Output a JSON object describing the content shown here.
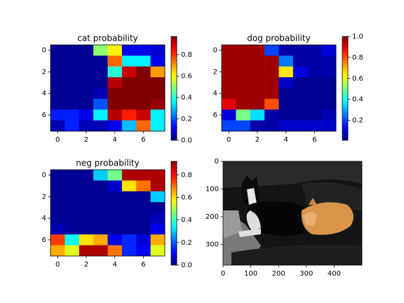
{
  "chart_data": [
    {
      "type": "heatmap",
      "title": "cat probability",
      "xlim": [
        -0.5,
        7.5
      ],
      "ylim": [
        7.5,
        -0.5
      ],
      "xticks": [
        0,
        2,
        4,
        6
      ],
      "yticks": [
        0,
        2,
        4,
        6
      ],
      "colormap": "jet",
      "clim": [
        0,
        0.97
      ],
      "cticks": [
        {
          "value": 0,
          "label": "0.0"
        },
        0.2,
        0.4,
        0.6,
        0.8
      ],
      "z": [
        [
          0.02,
          0.02,
          0.02,
          0.5,
          0.62,
          0.1,
          0.1,
          0.08
        ],
        [
          0.02,
          0.02,
          0.02,
          0.02,
          0.75,
          0.35,
          0.35,
          0.1
        ],
        [
          0.02,
          0.02,
          0.02,
          0.02,
          0.4,
          0.9,
          0.97,
          0.7
        ],
        [
          0.02,
          0.02,
          0.02,
          0.02,
          0.92,
          0.97,
          0.97,
          0.97
        ],
        [
          0.02,
          0.02,
          0.02,
          0.05,
          0.97,
          0.97,
          0.97,
          0.97
        ],
        [
          0.02,
          0.02,
          0.02,
          0.2,
          0.97,
          0.97,
          0.97,
          0.95
        ],
        [
          0.15,
          0.15,
          0.1,
          0.35,
          0.92,
          0.82,
          0.9,
          0.35
        ],
        [
          0.05,
          0.15,
          0.05,
          0.05,
          0.1,
          0.3,
          0.75,
          0.35
        ]
      ]
    },
    {
      "type": "heatmap",
      "title": "dog probability",
      "xlim": [
        -0.5,
        7.5
      ],
      "ylim": [
        7.5,
        -0.5
      ],
      "xticks": [
        0,
        2,
        4,
        6
      ],
      "yticks": [
        0,
        2,
        4,
        6
      ],
      "colormap": "jet",
      "clim": [
        0.01,
        1.0
      ],
      "cticks": [
        0.2,
        0.4,
        0.6,
        0.8,
        {
          "value": 1,
          "label": "1.0"
        }
      ],
      "z": [
        [
          0.97,
          0.97,
          0.97,
          0.2,
          0.05,
          0.05,
          0.05,
          0.1
        ],
        [
          0.97,
          0.97,
          0.97,
          0.97,
          0.25,
          0.05,
          0.05,
          0.05
        ],
        [
          0.97,
          0.97,
          0.97,
          0.97,
          0.65,
          0.1,
          0.05,
          0.05
        ],
        [
          0.97,
          0.97,
          0.97,
          0.97,
          0.08,
          0.03,
          0.03,
          0.03
        ],
        [
          0.97,
          0.97,
          0.97,
          0.97,
          0.03,
          0.03,
          0.03,
          0.03
        ],
        [
          0.9,
          0.97,
          0.97,
          0.8,
          0.03,
          0.03,
          0.03,
          0.03
        ],
        [
          0.1,
          0.5,
          0.35,
          0.05,
          0.03,
          0.03,
          0.03,
          0.06
        ],
        [
          0.2,
          0.2,
          0.05,
          0.05,
          0.08,
          0.08,
          0.08,
          0.08
        ]
      ]
    },
    {
      "type": "heatmap",
      "title": "neg probability",
      "xlim": [
        -0.5,
        7.5
      ],
      "ylim": [
        7.5,
        -0.5
      ],
      "xticks": [
        0,
        2,
        4,
        6
      ],
      "yticks": [
        0,
        2,
        4,
        6
      ],
      "colormap": "jet",
      "clim": [
        0,
        0.92
      ],
      "cticks": [
        {
          "value": 0,
          "label": "0.0"
        },
        0.2,
        0.4,
        0.6,
        0.8
      ],
      "z": [
        [
          0.02,
          0.02,
          0.02,
          0.3,
          0.45,
          0.88,
          0.88,
          0.88
        ],
        [
          0.02,
          0.02,
          0.02,
          0.02,
          0.07,
          0.6,
          0.7,
          0.88
        ],
        [
          0.02,
          0.02,
          0.02,
          0.02,
          0.02,
          0.02,
          0.02,
          0.3
        ],
        [
          0.02,
          0.02,
          0.02,
          0.02,
          0.02,
          0.02,
          0.02,
          0.02
        ],
        [
          0.02,
          0.02,
          0.02,
          0.02,
          0.02,
          0.02,
          0.02,
          0.05
        ],
        [
          0.05,
          0.02,
          0.02,
          0.02,
          0.02,
          0.02,
          0.02,
          0.1
        ],
        [
          0.75,
          0.35,
          0.6,
          0.65,
          0.1,
          0.15,
          0.08,
          0.65
        ],
        [
          0.65,
          0.55,
          0.88,
          0.88,
          0.7,
          0.15,
          0.1,
          0.55
        ]
      ]
    },
    {
      "type": "image",
      "xlim": [
        0,
        500
      ],
      "ylim": [
        375,
        0
      ],
      "xticks": [
        0,
        100,
        200,
        300,
        400
      ],
      "yticks": [
        0,
        100,
        200,
        300
      ]
    }
  ]
}
